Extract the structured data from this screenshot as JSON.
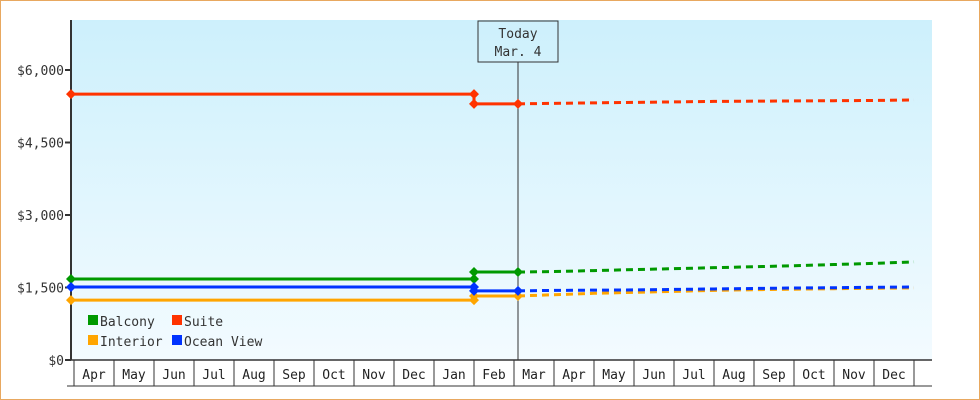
{
  "chart_data": {
    "type": "line",
    "title": "",
    "xlabel": "",
    "ylabel": "",
    "ylim": [
      0,
      7000
    ],
    "y_ticks": [
      "$0",
      "$1,500",
      "$3,000",
      "$4,500",
      "$6,000"
    ],
    "y_tick_values": [
      0,
      1500,
      3000,
      4500,
      6000
    ],
    "x_ticks": [
      "Apr",
      "May",
      "Jun",
      "Jul",
      "Aug",
      "Sep",
      "Oct",
      "Nov",
      "Dec",
      "Jan",
      "Feb",
      "Mar",
      "Apr",
      "May",
      "Jun",
      "Jul",
      "Aug",
      "Sep",
      "Oct",
      "Nov",
      "Dec"
    ],
    "grid": false,
    "background": [
      "#cdf0fc",
      "#f3fbff"
    ],
    "today_marker": {
      "line1": "Today",
      "line2": "Mar. 4",
      "x_month_index": 11.1
    },
    "legend": {
      "placement": "bottom-left",
      "entries": [
        "Balcony",
        "Suite",
        "Interior",
        "Ocean View"
      ]
    },
    "series": [
      {
        "name": "Balcony",
        "color": "#009900",
        "history": [
          {
            "x": 0,
            "y": 1675
          },
          {
            "x": 10,
            "y": 1675
          },
          {
            "x": 10,
            "y": 1820
          },
          {
            "x": 11.1,
            "y": 1820
          }
        ],
        "projection": [
          {
            "x": 11.1,
            "y": 1820
          },
          {
            "x": 12,
            "y": 1830
          },
          {
            "x": 13,
            "y": 1850
          },
          {
            "x": 14,
            "y": 1870
          },
          {
            "x": 15,
            "y": 1890
          },
          {
            "x": 16,
            "y": 1910
          },
          {
            "x": 17,
            "y": 1930
          },
          {
            "x": 18,
            "y": 1950
          },
          {
            "x": 19,
            "y": 1975
          },
          {
            "x": 20,
            "y": 2000
          },
          {
            "x": 21,
            "y": 2030
          }
        ]
      },
      {
        "name": "Suite",
        "color": "#ff3300",
        "history": [
          {
            "x": 0,
            "y": 5500
          },
          {
            "x": 10,
            "y": 5500
          },
          {
            "x": 10,
            "y": 5300
          },
          {
            "x": 11.1,
            "y": 5300
          }
        ],
        "projection": [
          {
            "x": 11.1,
            "y": 5300
          },
          {
            "x": 12,
            "y": 5310
          },
          {
            "x": 13,
            "y": 5320
          },
          {
            "x": 14,
            "y": 5330
          },
          {
            "x": 15,
            "y": 5340
          },
          {
            "x": 16,
            "y": 5350
          },
          {
            "x": 17,
            "y": 5355
          },
          {
            "x": 18,
            "y": 5360
          },
          {
            "x": 19,
            "y": 5365
          },
          {
            "x": 20,
            "y": 5370
          },
          {
            "x": 21,
            "y": 5380
          }
        ]
      },
      {
        "name": "Interior",
        "color": "#ffa500",
        "history": [
          {
            "x": 0,
            "y": 1240
          },
          {
            "x": 10,
            "y": 1240
          },
          {
            "x": 10,
            "y": 1325
          },
          {
            "x": 11.1,
            "y": 1325
          }
        ],
        "projection": [
          {
            "x": 11.1,
            "y": 1325
          },
          {
            "x": 12,
            "y": 1350
          },
          {
            "x": 13,
            "y": 1380
          },
          {
            "x": 14,
            "y": 1400
          },
          {
            "x": 15,
            "y": 1420
          },
          {
            "x": 16,
            "y": 1440
          },
          {
            "x": 17,
            "y": 1455
          },
          {
            "x": 18,
            "y": 1465
          },
          {
            "x": 19,
            "y": 1475
          },
          {
            "x": 20,
            "y": 1485
          },
          {
            "x": 21,
            "y": 1490
          }
        ]
      },
      {
        "name": "Ocean View",
        "color": "#0033ff",
        "history": [
          {
            "x": 0,
            "y": 1510
          },
          {
            "x": 10,
            "y": 1510
          },
          {
            "x": 10,
            "y": 1430
          },
          {
            "x": 11.1,
            "y": 1430
          }
        ],
        "projection": [
          {
            "x": 11.1,
            "y": 1430
          },
          {
            "x": 12,
            "y": 1440
          },
          {
            "x": 13,
            "y": 1445
          },
          {
            "x": 14,
            "y": 1450
          },
          {
            "x": 15,
            "y": 1460
          },
          {
            "x": 16,
            "y": 1470
          },
          {
            "x": 17,
            "y": 1480
          },
          {
            "x": 18,
            "y": 1490
          },
          {
            "x": 19,
            "y": 1495
          },
          {
            "x": 20,
            "y": 1505
          },
          {
            "x": 21,
            "y": 1510
          }
        ]
      }
    ]
  }
}
